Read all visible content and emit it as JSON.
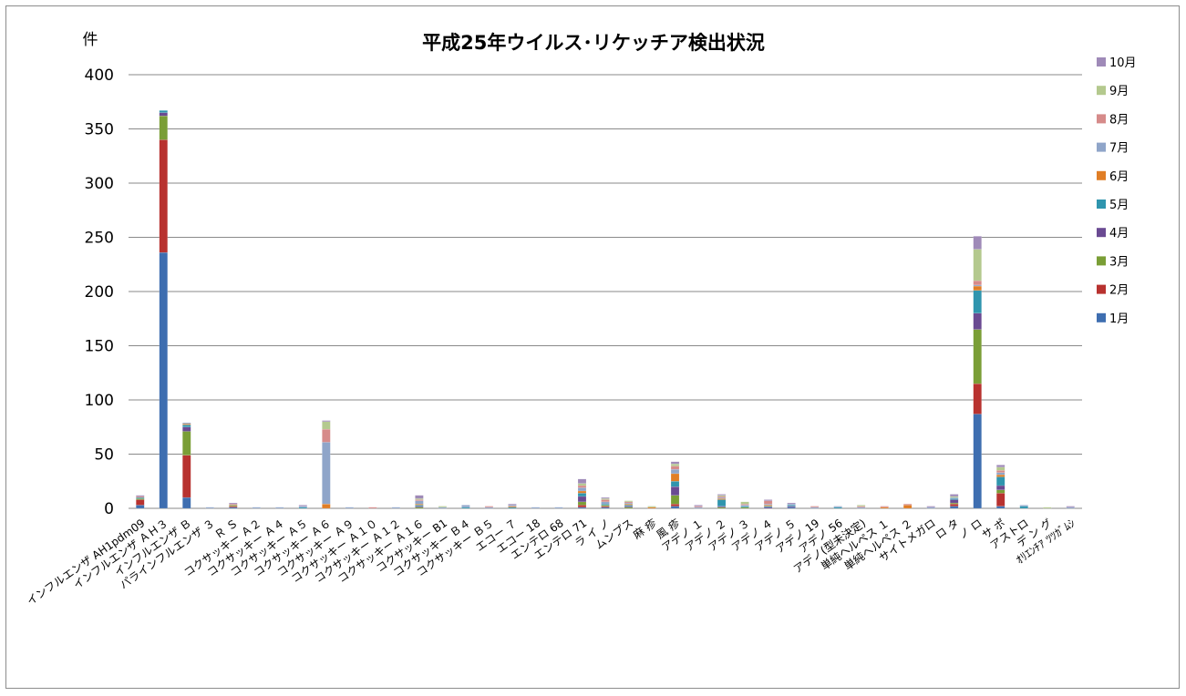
{
  "chart_data": {
    "type": "bar",
    "stacked": true,
    "title": "平成25年ウイルス･リケッチア検出状況",
    "unit_label": "件",
    "xlabel": "",
    "ylabel": "",
    "ylim": [
      0,
      400
    ],
    "yticks": [
      0,
      50,
      100,
      150,
      200,
      250,
      300,
      350,
      400
    ],
    "grid": true,
    "legend_position": "right",
    "categories": [
      "インフルエンザ AH1pdm09",
      "インフルエンザ ＡＨ３",
      "インフルエンザ Ｂ",
      "パラインフルエンザ ３",
      "Ｒ Ｓ",
      "コクサッキー Ａ２",
      "コクサッキー Ａ４",
      "コクサッキー Ａ５",
      "コクサッキー Ａ６",
      "コクサッキー Ａ９",
      "コクサッキー Ａ１０",
      "コクサッキー Ａ１２",
      "コクサッキー Ａ１６",
      "コクサッキー B1",
      "コクサッキー Ｂ４",
      "コクサッキー Ｂ５",
      "エコー ７",
      "エコー 18",
      "エンテロ 68",
      "エンテロ 71",
      "ラ イ ノ",
      "ムンプス",
      "麻 疹",
      "風 疹",
      "アデノ １",
      "アデノ ２",
      "アデノ ３",
      "アデノ ４",
      "アデノ ５",
      "アデノ 19",
      "アデノ 56",
      "アデノ(型未決定)",
      "単純ヘルペス １",
      "単純ヘルペス ２",
      "サイトメガロ",
      "ロ タ",
      "ノ ロ",
      "サ ポ",
      "アストロ",
      "デ ン グ",
      "ｵﾘｴﾝﾁｱ ﾂﾂｶﾞﾑｼ"
    ],
    "series": [
      {
        "name": "1月",
        "color": "#3e6eb0",
        "values": [
          3,
          236,
          10,
          0,
          1,
          0,
          0,
          0,
          0,
          0,
          0,
          0,
          0,
          0,
          0,
          0,
          0,
          0,
          0,
          1,
          1,
          0,
          0,
          2,
          0,
          0,
          0,
          0,
          1,
          0,
          0,
          0,
          0,
          0,
          0,
          2,
          87,
          2,
          0,
          0,
          0
        ]
      },
      {
        "name": "2月",
        "color": "#b8322f",
        "values": [
          5,
          104,
          39,
          0,
          1,
          0,
          0,
          0,
          0,
          0,
          0,
          0,
          0,
          0,
          0,
          0,
          0,
          0,
          0,
          2,
          1,
          0,
          0,
          2,
          0,
          0,
          0,
          0,
          0,
          0,
          0,
          0,
          0,
          0,
          0,
          2,
          28,
          12,
          0,
          0,
          0
        ]
      },
      {
        "name": "3月",
        "color": "#7a9e36",
        "values": [
          1,
          22,
          22,
          0,
          1,
          0,
          0,
          0,
          0,
          0,
          0,
          0,
          1,
          0,
          0,
          0,
          0,
          0,
          0,
          3,
          1,
          1,
          0,
          8,
          0,
          1,
          1,
          0,
          0,
          0,
          0,
          0,
          0,
          0,
          0,
          1,
          50,
          3,
          0,
          0,
          0
        ]
      },
      {
        "name": "4月",
        "color": "#6a4a92",
        "values": [
          0,
          3,
          4,
          0,
          0,
          0,
          0,
          0,
          0,
          0,
          0,
          0,
          1,
          0,
          0,
          0,
          0,
          0,
          0,
          5,
          0,
          1,
          0,
          8,
          0,
          1,
          0,
          1,
          1,
          0,
          0,
          0,
          0,
          0,
          0,
          3,
          15,
          4,
          0,
          0,
          0
        ]
      },
      {
        "name": "5月",
        "color": "#2f95ae",
        "values": [
          1,
          2,
          2,
          0,
          0,
          0,
          0,
          1,
          0,
          0,
          0,
          0,
          1,
          0,
          1,
          0,
          1,
          0,
          0,
          3,
          1,
          1,
          0,
          5,
          0,
          6,
          1,
          1,
          1,
          0,
          1,
          0,
          0,
          0,
          0,
          1,
          21,
          8,
          2,
          0,
          0
        ]
      },
      {
        "name": "6月",
        "color": "#e07e26",
        "values": [
          0,
          0,
          1,
          0,
          0,
          0,
          0,
          0,
          4,
          0,
          0,
          0,
          1,
          0,
          0,
          0,
          1,
          0,
          0,
          2,
          0,
          1,
          1,
          7,
          0,
          1,
          0,
          1,
          0,
          0,
          0,
          0,
          1,
          3,
          0,
          0,
          4,
          2,
          0,
          0,
          0
        ]
      },
      {
        "name": "7月",
        "color": "#8fa5c9",
        "values": [
          0,
          0,
          1,
          1,
          0,
          1,
          1,
          1,
          57,
          1,
          0,
          1,
          3,
          1,
          2,
          1,
          1,
          1,
          1,
          3,
          2,
          1,
          0,
          4,
          1,
          1,
          1,
          1,
          1,
          1,
          1,
          1,
          0,
          0,
          1,
          1,
          1,
          2,
          1,
          0,
          1
        ]
      },
      {
        "name": "8月",
        "color": "#d68b8a",
        "values": [
          1,
          0,
          0,
          0,
          1,
          0,
          0,
          0,
          12,
          0,
          1,
          0,
          1,
          0,
          0,
          1,
          0,
          0,
          0,
          2,
          2,
          1,
          0,
          3,
          1,
          1,
          1,
          3,
          0,
          1,
          0,
          1,
          1,
          1,
          0,
          0,
          4,
          2,
          0,
          0,
          0
        ]
      },
      {
        "name": "9月",
        "color": "#b4c98e",
        "values": [
          0,
          0,
          0,
          0,
          0,
          0,
          0,
          0,
          7,
          0,
          0,
          0,
          1,
          1,
          0,
          0,
          0,
          0,
          0,
          2,
          1,
          1,
          1,
          2,
          0,
          1,
          2,
          0,
          0,
          0,
          0,
          1,
          0,
          0,
          0,
          1,
          29,
          3,
          0,
          1,
          0
        ]
      },
      {
        "name": "10月",
        "color": "#9f8ab8",
        "values": [
          1,
          0,
          0,
          0,
          1,
          0,
          0,
          1,
          1,
          0,
          0,
          0,
          3,
          0,
          0,
          0,
          1,
          0,
          0,
          4,
          1,
          0,
          0,
          2,
          1,
          1,
          0,
          1,
          1,
          0,
          0,
          0,
          0,
          0,
          1,
          2,
          12,
          2,
          0,
          0,
          1
        ]
      }
    ]
  }
}
